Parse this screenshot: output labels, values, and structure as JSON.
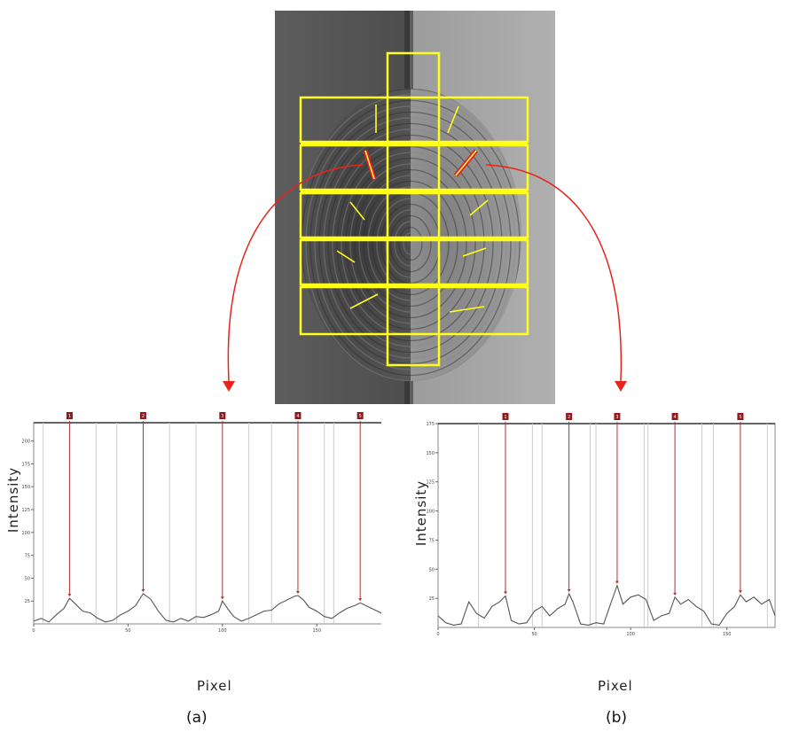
{
  "panels": [
    {
      "caption": "(a)",
      "ylabel": "Intensity",
      "xlabel": "Pixel",
      "xticks": [
        "0",
        "50",
        "100",
        "150"
      ],
      "yticks": [
        "25",
        "50",
        "75",
        "100",
        "125",
        "150",
        "175",
        "200"
      ],
      "markers": [
        "1",
        "2",
        "3",
        "4",
        "5"
      ]
    },
    {
      "caption": "(b)",
      "ylabel": "Intensity",
      "xlabel": "Pixel",
      "xticks": [
        "0",
        "50",
        "100",
        "150"
      ],
      "yticks": [
        "25",
        "50",
        "75",
        "100",
        "125",
        "150",
        "175"
      ],
      "markers": [
        "1",
        "2",
        "3",
        "4",
        "5"
      ]
    }
  ],
  "chart_data": [
    {
      "type": "line",
      "ylabel": "Intensity",
      "xlabel": "Pixel",
      "xlim": [
        0,
        195
      ],
      "ylim": [
        0,
        220
      ],
      "peaks_x": [
        19,
        58,
        100,
        140,
        173
      ],
      "x": [
        0,
        4,
        8,
        12,
        16,
        19,
        22,
        26,
        30,
        34,
        38,
        42,
        46,
        50,
        54,
        58,
        62,
        66,
        70,
        74,
        78,
        82,
        86,
        90,
        94,
        98,
        100,
        103,
        106,
        110,
        114,
        118,
        122,
        126,
        130,
        134,
        138,
        140,
        143,
        146,
        150,
        154,
        158,
        162,
        166,
        170,
        173,
        176,
        180,
        184,
        188,
        192,
        195
      ],
      "y": [
        3,
        6,
        2,
        10,
        17,
        28,
        22,
        14,
        12,
        6,
        2,
        4,
        10,
        14,
        20,
        33,
        27,
        14,
        4,
        2,
        6,
        3,
        8,
        7,
        10,
        14,
        25,
        16,
        8,
        3,
        6,
        10,
        14,
        15,
        22,
        26,
        30,
        31,
        26,
        18,
        14,
        8,
        6,
        12,
        17,
        20,
        23,
        20,
        16,
        12,
        4,
        8,
        14
      ]
    },
    {
      "type": "line",
      "ylabel": "Intensity",
      "xlabel": "Pixel",
      "xlim": [
        0,
        175
      ],
      "ylim": [
        0,
        175
      ],
      "peaks_x": [
        35,
        68,
        93,
        123,
        157
      ],
      "x": [
        0,
        4,
        8,
        12,
        16,
        20,
        24,
        28,
        32,
        35,
        38,
        42,
        46,
        50,
        54,
        58,
        62,
        66,
        68,
        70,
        74,
        78,
        82,
        86,
        90,
        93,
        96,
        100,
        104,
        108,
        112,
        116,
        120,
        123,
        126,
        130,
        134,
        138,
        142,
        146,
        150,
        154,
        157,
        160,
        164,
        168,
        172,
        175
      ],
      "y": [
        10,
        4,
        2,
        3,
        22,
        12,
        8,
        18,
        22,
        27,
        6,
        3,
        4,
        14,
        18,
        10,
        16,
        20,
        29,
        22,
        3,
        2,
        4,
        3,
        22,
        36,
        20,
        26,
        28,
        24,
        6,
        10,
        12,
        26,
        20,
        24,
        18,
        14,
        3,
        2,
        12,
        18,
        28,
        22,
        26,
        20,
        24,
        10
      ]
    }
  ]
}
